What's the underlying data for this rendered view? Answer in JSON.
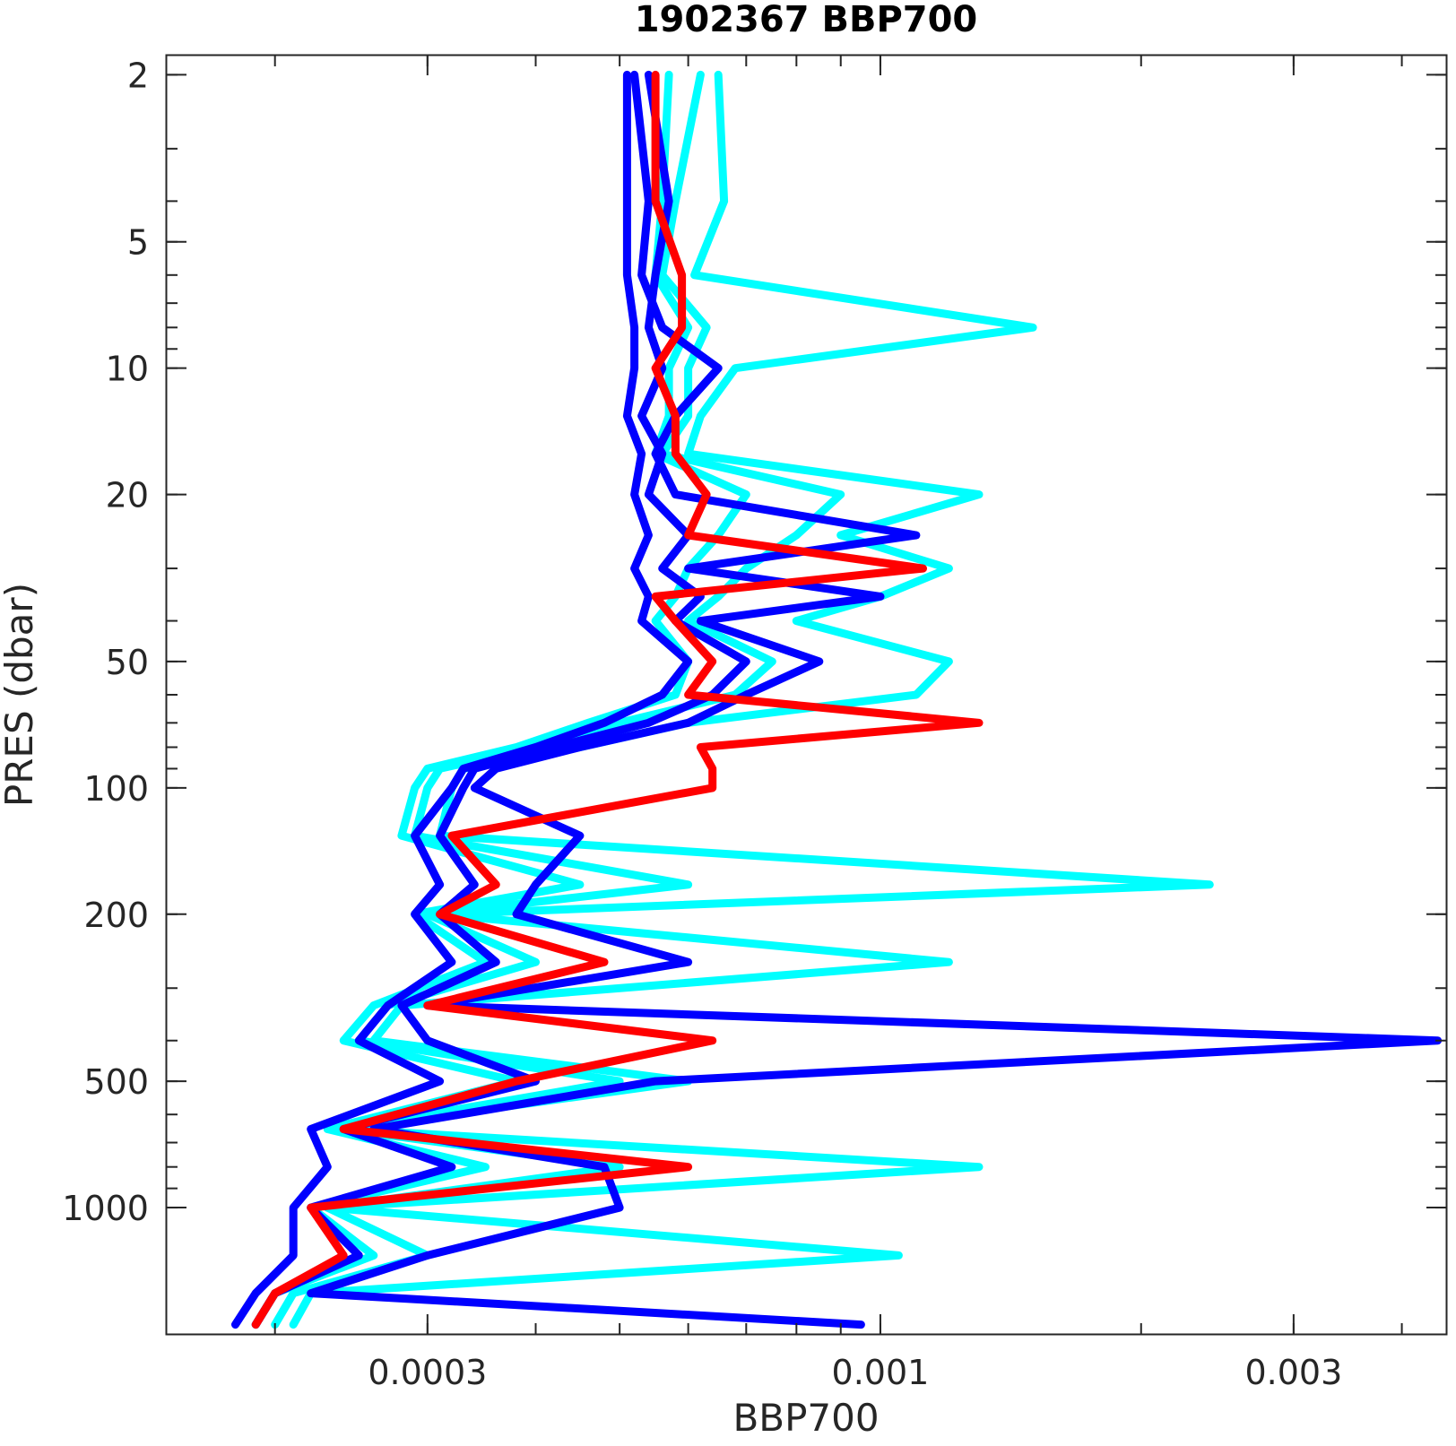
{
  "chart_data": {
    "type": "line",
    "title": "1902367 BBP700",
    "xlabel": "BBP700",
    "ylabel": "PRES (dbar)",
    "x_scale": "log",
    "y_scale": "log",
    "y_reversed": true,
    "xlim": [
      0.00015,
      0.0045
    ],
    "ylim": [
      1.8,
      2000
    ],
    "x_ticks": [
      0.0003,
      0.001,
      0.003
    ],
    "x_tick_labels": [
      "0.0003",
      "0.001",
      "0.003"
    ],
    "y_ticks": [
      2,
      5,
      10,
      20,
      50,
      100,
      200,
      500,
      1000
    ],
    "y_tick_labels": [
      "2",
      "5",
      "10",
      "20",
      "50",
      "100",
      "200",
      "500",
      "1000"
    ],
    "grid": false,
    "series": [
      {
        "color": "#00ffff",
        "pres": [
          2,
          4,
          6,
          8,
          10,
          13,
          16,
          20,
          25,
          30,
          35,
          40,
          50,
          60,
          70,
          80,
          90,
          100,
          130,
          170,
          200,
          260,
          330,
          400,
          500,
          650,
          800,
          1000,
          1300,
          1600,
          1900
        ],
        "bbp": [
          0.00065,
          0.00066,
          0.00061,
          0.0015,
          0.00068,
          0.00062,
          0.0006,
          0.0013,
          0.0009,
          0.0012,
          0.001,
          0.0008,
          0.0012,
          0.0011,
          0.0006,
          0.00045,
          0.00033,
          0.00032,
          0.00031,
          0.0024,
          0.00031,
          0.0012,
          0.00028,
          0.00026,
          0.0006,
          0.00024,
          0.0013,
          0.00023,
          0.00105,
          0.00022,
          0.00021
        ]
      },
      {
        "color": "#00ffff",
        "pres": [
          2,
          4,
          6,
          8,
          10,
          13,
          16,
          20,
          25,
          30,
          35,
          40,
          50,
          60,
          70,
          80,
          90,
          100,
          130,
          170,
          200,
          260,
          330,
          400,
          500,
          650,
          800,
          1000,
          1300,
          1600,
          1900
        ],
        "bbp": [
          0.00062,
          0.00058,
          0.00056,
          0.00063,
          0.0006,
          0.0006,
          0.00056,
          0.0009,
          0.0008,
          0.0007,
          0.00065,
          0.0006,
          0.00075,
          0.00068,
          0.0005,
          0.0004,
          0.00031,
          0.0003,
          0.00029,
          0.0006,
          0.0003,
          0.0004,
          0.00027,
          0.00025,
          0.0005,
          0.00024,
          0.0005,
          0.00023,
          0.0003,
          0.00021,
          0.0002
        ]
      },
      {
        "color": "#00ffff",
        "pres": [
          2,
          4,
          6,
          8,
          10,
          13,
          16,
          20,
          25,
          30,
          35,
          40,
          50,
          60,
          70,
          80,
          90,
          100,
          130,
          170,
          200,
          260,
          330,
          400,
          500,
          650,
          800,
          1000,
          1300,
          1600,
          1900
        ],
        "bbp": [
          0.00057,
          0.00056,
          0.00055,
          0.0006,
          0.00057,
          0.00057,
          0.00055,
          0.0007,
          0.00065,
          0.0006,
          0.00058,
          0.00055,
          0.0006,
          0.00058,
          0.00046,
          0.00038,
          0.0003,
          0.00029,
          0.00028,
          0.00045,
          0.00029,
          0.00035,
          0.00026,
          0.00024,
          0.00038,
          0.00023,
          0.00035,
          0.00022,
          0.00026,
          0.0002,
          0.00019
        ]
      },
      {
        "color": "#0000ff",
        "pres": [
          2,
          4,
          6,
          8,
          10,
          13,
          16,
          20,
          25,
          30,
          35,
          40,
          50,
          60,
          70,
          80,
          90,
          100,
          130,
          170,
          200,
          260,
          330,
          400,
          500,
          650,
          800,
          1000,
          1300,
          1600,
          1900
        ],
        "bbp": [
          0.00051,
          0.00051,
          0.00051,
          0.00052,
          0.00052,
          0.00051,
          0.00053,
          0.00052,
          0.00054,
          0.00052,
          0.00054,
          0.00053,
          0.0006,
          0.00056,
          0.00048,
          0.0004,
          0.00033,
          0.00032,
          0.00029,
          0.00031,
          0.00029,
          0.00032,
          0.00027,
          0.00025,
          0.00031,
          0.00022,
          0.00023,
          0.00021,
          0.00021,
          0.00019,
          0.00018
        ]
      },
      {
        "color": "#0000ff",
        "pres": [
          2,
          4,
          6,
          8,
          10,
          13,
          16,
          20,
          25,
          30,
          35,
          40,
          50,
          60,
          70,
          80,
          90,
          100,
          130,
          170,
          200,
          260,
          330,
          400,
          500,
          650,
          800,
          1000,
          1300,
          1600,
          1900
        ],
        "bbp": [
          0.00052,
          0.00054,
          0.00053,
          0.00056,
          0.00065,
          0.00058,
          0.00055,
          0.00058,
          0.0011,
          0.0006,
          0.001,
          0.00062,
          0.00085,
          0.0007,
          0.0006,
          0.00045,
          0.00036,
          0.00034,
          0.00045,
          0.0004,
          0.00038,
          0.0006,
          0.0003,
          0.0044,
          0.00055,
          0.00026,
          0.00048,
          0.0005,
          0.0003,
          0.00022,
          0.00095
        ]
      },
      {
        "color": "#0000ff",
        "pres": [
          2,
          4,
          6,
          8,
          10,
          13,
          16,
          20,
          25,
          30,
          35,
          40,
          50,
          60,
          70,
          80,
          90,
          100,
          130,
          170,
          200,
          260,
          330,
          400,
          500,
          650,
          800,
          1000,
          1300,
          1600,
          1900
        ],
        "bbp": [
          0.00054,
          0.00057,
          0.00055,
          0.00054,
          0.00056,
          0.00053,
          0.00056,
          0.00054,
          0.0006,
          0.00056,
          0.00062,
          0.00058,
          0.0007,
          0.00064,
          0.00054,
          0.00042,
          0.00034,
          0.00033,
          0.00031,
          0.00034,
          0.00031,
          0.00036,
          0.00028,
          0.0003,
          0.0004,
          0.00024,
          0.00032,
          0.00022,
          0.00025,
          0.0002,
          0.00019
        ]
      },
      {
        "color": "#ff0000",
        "pres": [
          2,
          4,
          6,
          8,
          10,
          13,
          16,
          20,
          25,
          30,
          35,
          40,
          50,
          60,
          70,
          80,
          90,
          100,
          130,
          170,
          200,
          260,
          330,
          400,
          500,
          650,
          800,
          1000,
          1300,
          1600,
          1900
        ],
        "bbp": [
          0.00055,
          0.00055,
          0.00059,
          0.00059,
          0.00055,
          0.00058,
          0.00058,
          0.00063,
          0.0006,
          0.00112,
          0.00055,
          0.00058,
          0.00064,
          0.0006,
          0.0013,
          0.00062,
          0.00064,
          0.00064,
          0.00032,
          0.00036,
          0.00031,
          0.00048,
          0.0003,
          0.00064,
          0.00038,
          0.00024,
          0.0006,
          0.00022,
          0.00024,
          0.0002,
          0.00019
        ]
      }
    ]
  }
}
